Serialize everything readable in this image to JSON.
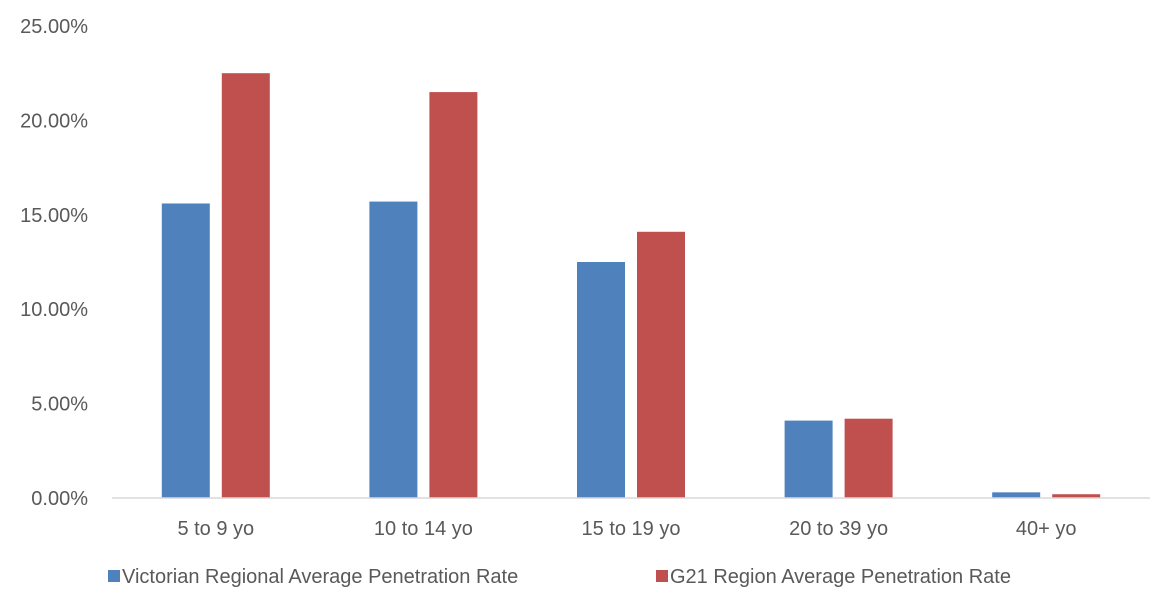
{
  "chart_data": {
    "type": "bar",
    "title": "",
    "xlabel": "",
    "ylabel": "",
    "categories": [
      "5 to 9 yo",
      "10 to 14 yo",
      "15 to 19 yo",
      "20 to 39 yo",
      "40+ yo"
    ],
    "series": [
      {
        "name": "Victorian Regional Average Penetration Rate",
        "color": "#4F81BD",
        "values": [
          15.6,
          15.7,
          12.5,
          4.1,
          0.3
        ]
      },
      {
        "name": "G21 Region Average Penetration Rate",
        "color": "#C0504D",
        "values": [
          22.5,
          21.5,
          14.1,
          4.2,
          0.2
        ]
      }
    ],
    "ylim": [
      0,
      25
    ],
    "yticks": [
      0,
      5,
      10,
      15,
      20,
      25
    ],
    "ytick_labels": [
      "0.00%",
      "5.00%",
      "10.00%",
      "15.00%",
      "20.00%",
      "25.00%"
    ],
    "grid": false,
    "legend_position": "bottom"
  }
}
